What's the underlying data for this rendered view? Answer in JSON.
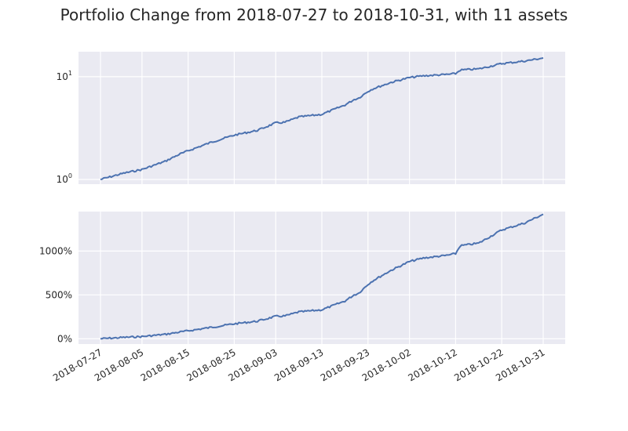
{
  "chart_data": [
    {
      "type": "line",
      "title": "Portfolio Change from 2018-07-27 to 2018-10-31, with 11 assets",
      "yscale": "log",
      "ylim": [
        0.9,
        17.5
      ],
      "yticks": [
        {
          "value": 1,
          "base": "10",
          "exp": "0"
        },
        {
          "value": 10,
          "base": "10",
          "exp": "1"
        }
      ],
      "grid": true,
      "xlim": [
        "2018-07-27",
        "2018-10-31"
      ],
      "x": [
        "2018-07-27",
        "2018-08-01",
        "2018-08-05",
        "2018-08-10",
        "2018-08-13",
        "2018-08-15",
        "2018-08-20",
        "2018-08-25",
        "2018-08-30",
        "2018-09-03",
        "2018-09-05",
        "2018-09-08",
        "2018-09-13",
        "2018-09-18",
        "2018-09-20",
        "2018-09-21",
        "2018-09-23",
        "2018-09-24",
        "2018-09-28",
        "2018-10-02",
        "2018-10-05",
        "2018-10-10",
        "2018-10-12",
        "2018-10-13",
        "2018-10-17",
        "2018-10-22",
        "2018-10-27",
        "2018-10-31"
      ],
      "values": [
        1.0,
        1.15,
        1.25,
        1.5,
        1.75,
        1.9,
        2.3,
        2.7,
        3.0,
        3.55,
        3.6,
        4.05,
        4.3,
        5.3,
        6.0,
        6.2,
        7.2,
        7.6,
        8.8,
        9.8,
        10.2,
        10.5,
        10.7,
        11.6,
        11.9,
        13.4,
        14.2,
        15.2
      ]
    },
    {
      "type": "line",
      "ylim": [
        -60,
        1450
      ],
      "yticks": [
        {
          "value": 0,
          "label": "0%"
        },
        {
          "value": 500,
          "label": "500%"
        },
        {
          "value": 1000,
          "label": "1000%"
        }
      ],
      "grid": true,
      "xlim": [
        "2018-07-27",
        "2018-10-31"
      ],
      "xticks": [
        "2018-07-27",
        "2018-08-05",
        "2018-08-15",
        "2018-08-25",
        "2018-09-03",
        "2018-09-13",
        "2018-09-23",
        "2018-10-02",
        "2018-10-12",
        "2018-10-22",
        "2018-10-31"
      ],
      "x": [
        "2018-07-27",
        "2018-08-01",
        "2018-08-05",
        "2018-08-10",
        "2018-08-13",
        "2018-08-15",
        "2018-08-20",
        "2018-08-25",
        "2018-08-30",
        "2018-09-03",
        "2018-09-05",
        "2018-09-08",
        "2018-09-13",
        "2018-09-18",
        "2018-09-20",
        "2018-09-21",
        "2018-09-23",
        "2018-09-24",
        "2018-09-28",
        "2018-10-02",
        "2018-10-05",
        "2018-10-10",
        "2018-10-12",
        "2018-10-13",
        "2018-10-17",
        "2018-10-22",
        "2018-10-27",
        "2018-10-31"
      ],
      "values": [
        0,
        15,
        25,
        50,
        75,
        90,
        130,
        170,
        200,
        255,
        260,
        305,
        330,
        430,
        500,
        520,
        620,
        660,
        780,
        880,
        920,
        950,
        970,
        1060,
        1090,
        1240,
        1320,
        1420
      ]
    }
  ],
  "colors": {
    "line": "#4c72b0",
    "panel": "#eaeaf2",
    "grid": "#ffffff"
  }
}
